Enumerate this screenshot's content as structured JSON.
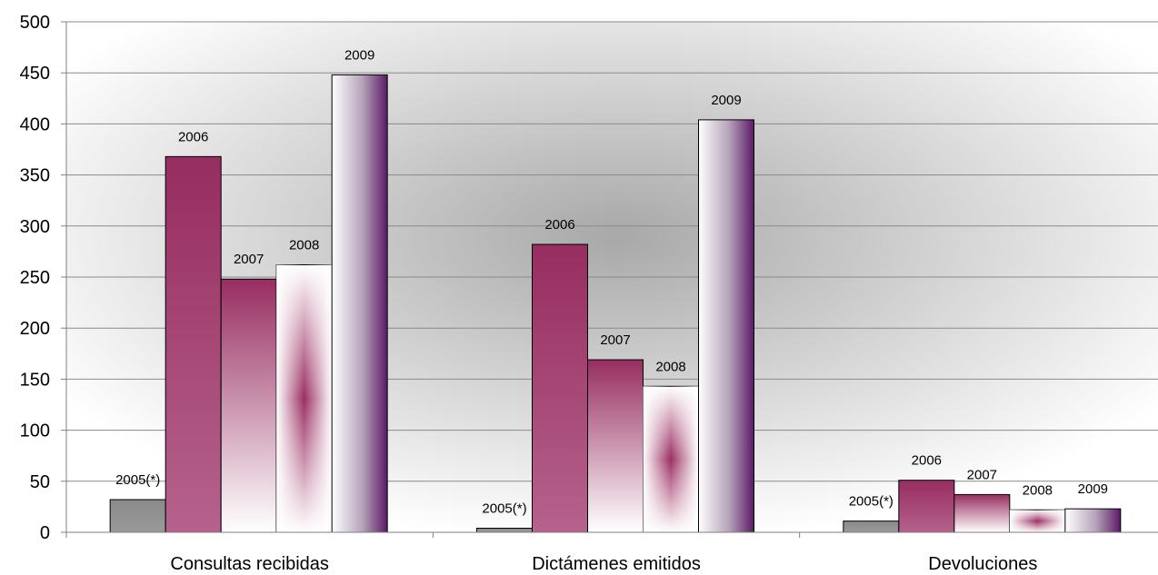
{
  "chart_data": {
    "type": "bar",
    "categories": [
      "Consultas recibidas",
      "Dictámenes emitidos",
      "Devoluciones"
    ],
    "series": [
      {
        "name": "2005(*)",
        "values": [
          32,
          4,
          11
        ],
        "color": "#8c8c8c",
        "style": "gray"
      },
      {
        "name": "2006",
        "values": [
          368,
          282,
          51
        ],
        "color": "#9b2f62",
        "style": "magenta-fade"
      },
      {
        "name": "2007",
        "values": [
          248,
          169,
          37
        ],
        "color": "#9b2f62",
        "style": "magenta-to-white"
      },
      {
        "name": "2008",
        "values": [
          262,
          143,
          22
        ],
        "color": "#9b2f62",
        "style": "white-hourglass"
      },
      {
        "name": "2009",
        "values": [
          448,
          404,
          23
        ],
        "color": "#5e1f66",
        "style": "white-to-purple"
      }
    ],
    "data_labels": [
      [
        "2005(*)",
        "2006",
        "2007",
        "2008",
        "2009"
      ],
      [
        "2005(*)",
        "2006",
        "2007",
        "2008",
        "2009"
      ],
      [
        "2005(*)",
        "2006",
        "2007",
        "2008",
        "2009"
      ]
    ],
    "title": "",
    "xlabel": "",
    "ylabel": "",
    "ylim": [
      0,
      500
    ],
    "yticks": [
      "0",
      "50",
      "100",
      "150",
      "200",
      "250",
      "300",
      "350",
      "400",
      "450",
      "500"
    ],
    "grid": true,
    "legend": "none"
  }
}
